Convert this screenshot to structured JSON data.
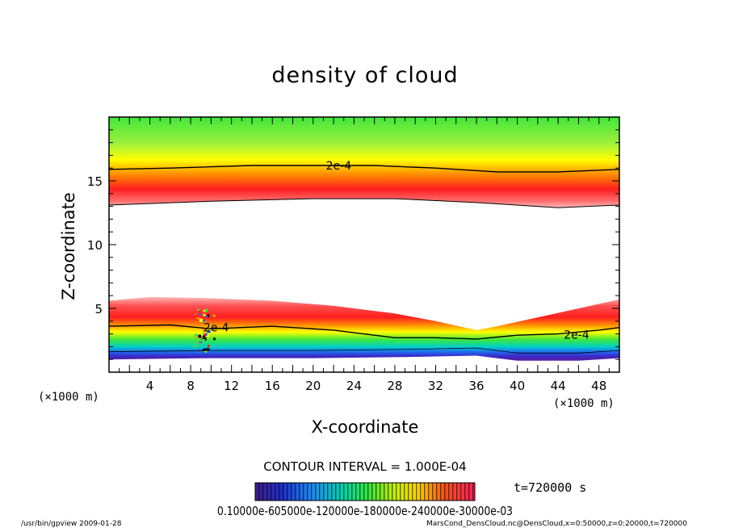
{
  "chart_data": {
    "type": "heatmap",
    "title": "density of cloud",
    "xlabel": "X-coordinate",
    "ylabel": "Z-coordinate",
    "x_unit": "(×1000 m)",
    "y_unit": "(×1000 m)",
    "xlim": [
      0,
      50
    ],
    "ylim": [
      0,
      20
    ],
    "xticks": [
      4,
      8,
      12,
      16,
      20,
      24,
      28,
      32,
      36,
      40,
      44,
      48
    ],
    "yticks": [
      5,
      10,
      15
    ],
    "contour_interval_label": "CONTOUR INTERVAL = 1.000E-04",
    "contour_label": "2e-4",
    "time_label": "t=720000 s",
    "colorbar_labels": "0.10000e-605000e-120000e-180000e-240000e-30000e-03",
    "colorbar_range": [
      0.0001,
      0.0003
    ],
    "colors": {
      "low": "#5a1ea0",
      "mid_low": "#1e6ef0",
      "mid": "#3ce63c",
      "mid_high": "#ffff00",
      "high": "#ff0000",
      "peak": "#ffb4b4"
    },
    "upper_layer": {
      "green_top_z": 19.5,
      "contour_2e4_z": [
        [
          0,
          15.9
        ],
        [
          6,
          16.0
        ],
        [
          14,
          16.2
        ],
        [
          20,
          16.2
        ],
        [
          26,
          16.2
        ],
        [
          32,
          16.0
        ],
        [
          38,
          15.7
        ],
        [
          44,
          15.7
        ],
        [
          50,
          15.9
        ]
      ],
      "red_core_z": [
        [
          0,
          14.4
        ],
        [
          12,
          14.7
        ],
        [
          26,
          14.9
        ],
        [
          38,
          14.4
        ],
        [
          50,
          14.3
        ]
      ],
      "bottom_edge_z": [
        [
          0,
          13.1
        ],
        [
          10,
          13.4
        ],
        [
          20,
          13.6
        ],
        [
          28,
          13.6
        ],
        [
          36,
          13.3
        ],
        [
          44,
          12.9
        ],
        [
          50,
          13.1
        ]
      ]
    },
    "lower_layer": {
      "top_edge_z": [
        [
          0,
          5.6
        ],
        [
          4,
          5.9
        ],
        [
          10,
          5.8
        ],
        [
          16,
          5.6
        ],
        [
          22,
          5.2
        ],
        [
          28,
          4.6
        ],
        [
          32,
          4.0
        ],
        [
          36,
          3.3
        ],
        [
          38,
          3.6
        ],
        [
          42,
          4.3
        ],
        [
          46,
          5.0
        ],
        [
          50,
          5.7
        ]
      ],
      "contour_2e4_z": [
        [
          0,
          3.6
        ],
        [
          6,
          3.7
        ],
        [
          10,
          3.4
        ],
        [
          16,
          3.6
        ],
        [
          22,
          3.3
        ],
        [
          28,
          2.7
        ],
        [
          32,
          2.7
        ],
        [
          36,
          2.6
        ],
        [
          40,
          2.9
        ],
        [
          44,
          3.0
        ],
        [
          48,
          3.3
        ],
        [
          50,
          3.5
        ]
      ],
      "bottom_edge_z": [
        [
          0,
          1.0
        ],
        [
          10,
          1.1
        ],
        [
          20,
          1.1
        ],
        [
          30,
          1.2
        ],
        [
          36,
          1.3
        ],
        [
          40,
          0.9
        ],
        [
          46,
          0.9
        ],
        [
          50,
          1.1
        ]
      ]
    }
  },
  "footer": {
    "left": "/usr/bin/gpview  2009-01-28",
    "right": "MarsCond_DensCloud.nc@DensCloud,x=0:50000,z=0:20000,t=720000"
  }
}
